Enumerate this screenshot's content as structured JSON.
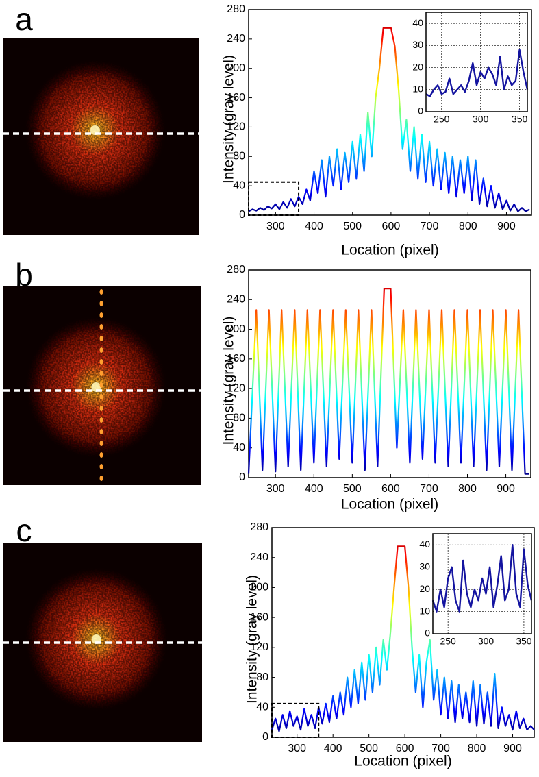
{
  "chart_data": [
    {
      "type": "line",
      "panel": "a",
      "xlabel": "Location (pixel)",
      "ylabel": "Intensity (gray level)",
      "colormap": [
        "#00007f",
        "#0000ff",
        "#007fff",
        "#00ffff",
        "#7fff7f",
        "#ffff00",
        "#ff7f00",
        "#ff0000",
        "#7f0000"
      ],
      "xlim": [
        230,
        965
      ],
      "xticks": [
        300,
        400,
        500,
        600,
        700,
        800,
        900
      ],
      "ylim": [
        0,
        280
      ],
      "yticks": [
        0,
        40,
        80,
        120,
        160,
        200,
        240,
        280
      ],
      "x": [
        230,
        240,
        250,
        260,
        270,
        280,
        290,
        300,
        310,
        320,
        330,
        340,
        350,
        360,
        370,
        380,
        390,
        400,
        410,
        420,
        430,
        440,
        450,
        460,
        470,
        480,
        490,
        500,
        510,
        520,
        530,
        540,
        550,
        560,
        570,
        580,
        590,
        600,
        610,
        620,
        630,
        640,
        650,
        660,
        670,
        680,
        690,
        700,
        710,
        720,
        730,
        740,
        750,
        760,
        770,
        780,
        790,
        800,
        810,
        820,
        830,
        840,
        850,
        860,
        870,
        880,
        890,
        900,
        910,
        920,
        930,
        940,
        950,
        960
      ],
      "values": [
        5,
        8,
        6,
        10,
        7,
        12,
        9,
        15,
        8,
        18,
        10,
        22,
        12,
        25,
        15,
        35,
        20,
        60,
        30,
        75,
        25,
        80,
        40,
        90,
        35,
        85,
        45,
        100,
        50,
        110,
        60,
        140,
        80,
        160,
        200,
        255,
        255,
        255,
        230,
        170,
        90,
        130,
        60,
        120,
        50,
        110,
        45,
        100,
        40,
        90,
        35,
        85,
        30,
        80,
        25,
        75,
        30,
        80,
        20,
        75,
        15,
        50,
        12,
        40,
        10,
        30,
        8,
        20,
        6,
        15,
        5,
        10,
        5,
        8
      ],
      "inset": {
        "color": "#1414a0",
        "grid": true,
        "xlim": [
          230,
          360
        ],
        "xticks": [
          250,
          300,
          350
        ],
        "ylim": [
          0,
          45
        ],
        "yticks": [
          0,
          10,
          20,
          30,
          40
        ],
        "x": [
          230,
          235,
          240,
          245,
          250,
          255,
          260,
          265,
          270,
          275,
          280,
          285,
          290,
          295,
          300,
          305,
          310,
          315,
          320,
          325,
          330,
          335,
          340,
          345,
          350,
          355,
          360
        ],
        "values": [
          8,
          7,
          10,
          12,
          8,
          9,
          15,
          8,
          10,
          12,
          9,
          14,
          22,
          12,
          18,
          15,
          20,
          17,
          12,
          25,
          10,
          16,
          12,
          14,
          28,
          18,
          10
        ]
      }
    },
    {
      "type": "line",
      "panel": "b",
      "xlabel": "Location (pixel)",
      "ylabel": "Intensity (gray level)",
      "colormap": [
        "#00007f",
        "#0000ff",
        "#007fff",
        "#00ffff",
        "#7fff7f",
        "#ffff00",
        "#ff7f00",
        "#ff0000",
        "#7f0000"
      ],
      "xlim": [
        230,
        965
      ],
      "xticks": [
        300,
        400,
        500,
        600,
        700,
        800,
        900
      ],
      "ylim": [
        0,
        280
      ],
      "yticks": [
        0,
        40,
        80,
        120,
        160,
        200,
        240,
        280
      ],
      "x": [
        230,
        250,
        266,
        283,
        300,
        316,
        333,
        350,
        366,
        383,
        400,
        416,
        433,
        450,
        466,
        483,
        500,
        516,
        533,
        550,
        566,
        583,
        600,
        616,
        633,
        650,
        666,
        683,
        700,
        716,
        733,
        750,
        766,
        783,
        800,
        816,
        833,
        850,
        866,
        883,
        900,
        916,
        933,
        950,
        960
      ],
      "values": [
        5,
        226,
        10,
        226,
        8,
        226,
        15,
        226,
        10,
        226,
        20,
        226,
        15,
        226,
        25,
        226,
        20,
        226,
        10,
        226,
        15,
        255,
        255,
        40,
        226,
        20,
        226,
        25,
        226,
        20,
        226,
        15,
        226,
        20,
        226,
        15,
        226,
        10,
        226,
        15,
        226,
        10,
        226,
        5,
        5
      ]
    },
    {
      "type": "line",
      "panel": "c",
      "xlabel": "Location (pixel)",
      "ylabel": "Intensity (gray level)",
      "colormap": [
        "#00007f",
        "#0000ff",
        "#007fff",
        "#00ffff",
        "#7fff7f",
        "#ffff00",
        "#ff7f00",
        "#ff0000",
        "#7f0000"
      ],
      "xlim": [
        230,
        960
      ],
      "xticks": [
        300,
        400,
        500,
        600,
        700,
        800,
        900
      ],
      "ylim": [
        0,
        280
      ],
      "yticks": [
        0,
        40,
        80,
        120,
        160,
        200,
        240,
        280
      ],
      "x": [
        230,
        240,
        250,
        260,
        270,
        280,
        290,
        300,
        310,
        320,
        330,
        340,
        350,
        360,
        370,
        380,
        390,
        400,
        410,
        420,
        430,
        440,
        450,
        460,
        470,
        480,
        490,
        500,
        510,
        520,
        530,
        540,
        550,
        560,
        570,
        580,
        590,
        600,
        610,
        620,
        630,
        640,
        650,
        660,
        670,
        680,
        690,
        700,
        710,
        720,
        730,
        740,
        750,
        760,
        770,
        780,
        790,
        800,
        810,
        820,
        830,
        840,
        850,
        860,
        870,
        880,
        890,
        900,
        910,
        920,
        930,
        940,
        950,
        960
      ],
      "values": [
        10,
        25,
        8,
        30,
        12,
        35,
        15,
        28,
        10,
        38,
        15,
        30,
        12,
        40,
        18,
        45,
        20,
        55,
        25,
        60,
        30,
        80,
        40,
        90,
        45,
        100,
        50,
        110,
        60,
        120,
        70,
        130,
        90,
        140,
        200,
        255,
        255,
        255,
        200,
        120,
        60,
        110,
        40,
        100,
        130,
        50,
        90,
        30,
        80,
        25,
        75,
        20,
        70,
        25,
        60,
        20,
        75,
        15,
        70,
        18,
        60,
        15,
        85,
        12,
        40,
        15,
        30,
        10,
        35,
        12,
        25,
        10,
        15,
        10
      ],
      "inset": {
        "color": "#1414a0",
        "grid": true,
        "xlim": [
          230,
          360
        ],
        "xticks": [
          250,
          300,
          350
        ],
        "ylim": [
          0,
          45
        ],
        "yticks": [
          0,
          10,
          20,
          30,
          40
        ],
        "x": [
          230,
          235,
          240,
          245,
          250,
          255,
          260,
          265,
          270,
          275,
          280,
          285,
          290,
          295,
          300,
          305,
          310,
          315,
          320,
          325,
          330,
          335,
          340,
          345,
          350,
          355,
          360
        ],
        "values": [
          15,
          10,
          20,
          12,
          25,
          30,
          15,
          10,
          33,
          18,
          12,
          20,
          15,
          25,
          18,
          30,
          12,
          22,
          35,
          15,
          20,
          40,
          18,
          12,
          38,
          22,
          15
        ]
      }
    }
  ]
}
